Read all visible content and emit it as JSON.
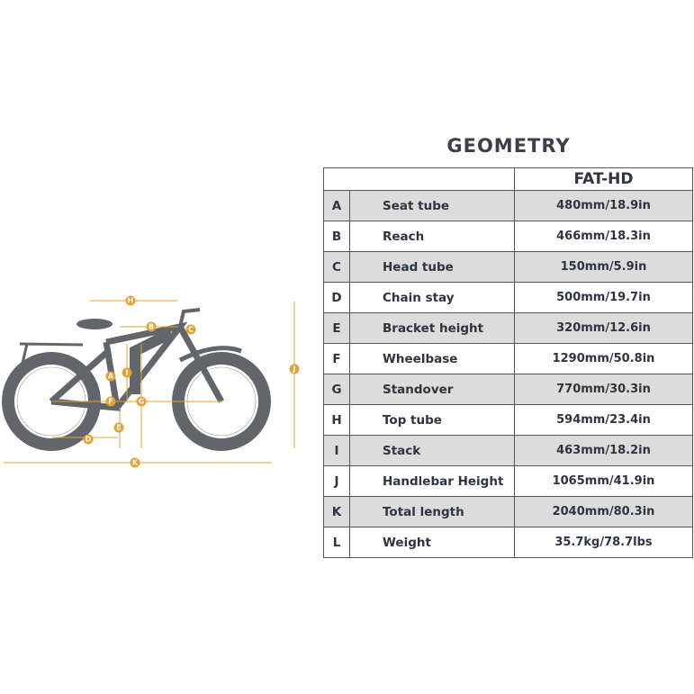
{
  "title": "GEOMETRY",
  "column_header": "FAT-HD",
  "rows": [
    {
      "letter": "A",
      "name": "Seat tube",
      "value": "480mm/18.9in"
    },
    {
      "letter": "B",
      "name": "Reach",
      "value": "466mm/18.3in"
    },
    {
      "letter": "C",
      "name": "Head tube",
      "value": "150mm/5.9in"
    },
    {
      "letter": "D",
      "name": "Chain stay",
      "value": "500mm/19.7in"
    },
    {
      "letter": "E",
      "name": "Bracket height",
      "value": "320mm/12.6in"
    },
    {
      "letter": "F",
      "name": "Wheelbase",
      "value": "1290mm/50.8in"
    },
    {
      "letter": "G",
      "name": "Standover",
      "value": "770mm/30.3in"
    },
    {
      "letter": "H",
      "name": "Top tube",
      "value": "594mm/23.4in"
    },
    {
      "letter": "I",
      "name": "Stack",
      "value": "463mm/18.2in"
    },
    {
      "letter": "J",
      "name": "Handlebar Height",
      "value": "1065mm/41.9in"
    },
    {
      "letter": "K",
      "name": "Total length",
      "value": "2040mm/80.3in"
    },
    {
      "letter": "L",
      "name": "Weight",
      "value": "35.7kg/78.7lbs"
    }
  ],
  "colors": {
    "bike": "#62666b",
    "dimension": "#e3a136",
    "shaded_row": "#dcdcdc"
  }
}
